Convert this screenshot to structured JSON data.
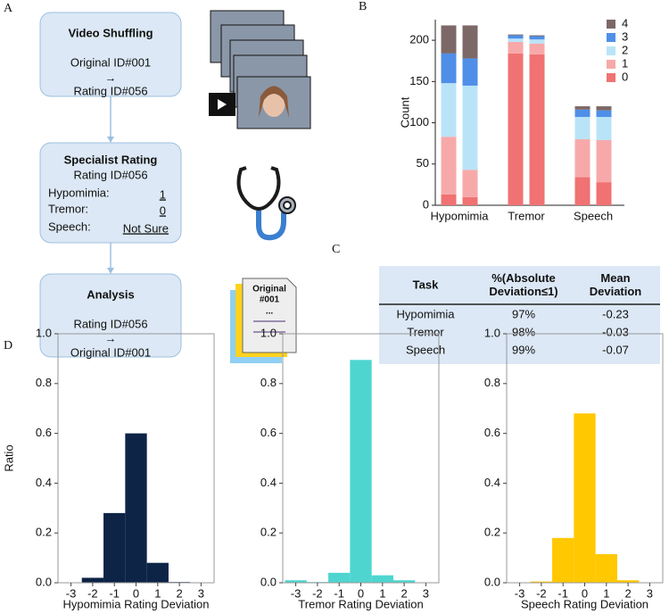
{
  "diagram": {
    "panel_label": "A",
    "boxes": [
      {
        "title": "Video Shuffling",
        "lines": [
          "Original ID#001",
          "→",
          "Rating ID#056"
        ]
      },
      {
        "title": "Specialist Rating",
        "lines": [
          "Rating ID#056"
        ],
        "fields": [
          {
            "label": "Hypomimia:",
            "value": "1"
          },
          {
            "label": "Tremor:",
            "value": "0"
          },
          {
            "label": "Speech:",
            "value": "Not Sure"
          }
        ]
      },
      {
        "title": "Analysis",
        "lines": [
          "Rating ID#056",
          "→",
          "Original ID#001"
        ]
      }
    ],
    "document_icon": [
      "Original",
      "#001",
      "..."
    ]
  },
  "table": {
    "panel_label": "C",
    "header": [
      [
        "Task"
      ],
      [
        "%(Absolute",
        "Deviation≤1)"
      ],
      [
        "Mean",
        "Deviation"
      ]
    ],
    "rows": [
      [
        "Hypomimia",
        "97%",
        "-0.23"
      ],
      [
        "Tremor",
        "98%",
        "-0.03"
      ],
      [
        "Speech",
        "99%",
        "-0.07"
      ]
    ]
  },
  "chart_data": [
    {
      "type": "stacked_bar",
      "panel_label": "B",
      "ylabel": "Count",
      "categories": [
        "Hypomimia",
        null,
        "Tremor",
        null,
        "Speech",
        null
      ],
      "series": [
        {
          "name": "0",
          "color": "#f07272",
          "values": [
            13,
            10,
            184,
            183,
            34,
            28
          ]
        },
        {
          "name": "1",
          "color": "#f7a9a9",
          "values": [
            70,
            33,
            14,
            13,
            46,
            51
          ]
        },
        {
          "name": "2",
          "color": "#b9e4f8",
          "values": [
            65,
            102,
            4,
            5,
            27,
            28
          ]
        },
        {
          "name": "3",
          "color": "#4f8fe8",
          "values": [
            36,
            33,
            4,
            4,
            9,
            8
          ]
        },
        {
          "name": "4",
          "color": "#7d6868",
          "values": [
            34,
            40,
            1,
            1,
            4,
            5
          ]
        }
      ],
      "ylim": [
        0,
        225
      ],
      "yticks": [
        0,
        50,
        100,
        150,
        200
      ],
      "legend": "upper-right"
    },
    {
      "type": "histogram",
      "panel_label": "D",
      "ylabel": "Ratio",
      "xlabel": "Hypomimia Rating Deviation",
      "color": "#0d2447",
      "bins": [
        -3.5,
        -2.5,
        -1.5,
        -0.5,
        0.5,
        1.5,
        2.5,
        3.5
      ],
      "values": [
        0,
        0.02,
        0.28,
        0.6,
        0.08,
        0.003,
        0
      ],
      "xlim": [
        -3.6,
        3.6
      ],
      "xticks": [
        -3,
        -2,
        -1,
        0,
        1,
        2,
        3
      ],
      "ylim": [
        0,
        1
      ],
      "yticks": [
        {
          "value": 0,
          "label": "0.0"
        },
        0.2,
        0.4,
        0.6,
        0.8,
        {
          "value": 1,
          "label": "1.0"
        }
      ]
    },
    {
      "type": "histogram",
      "xlabel": "Tremor Rating Deviation",
      "color": "#4fd5d0",
      "bins": [
        -3.5,
        -2.5,
        -1.5,
        -0.5,
        0.5,
        1.5,
        2.5,
        3.5
      ],
      "values": [
        0.01,
        0.003,
        0.04,
        0.895,
        0.03,
        0.01,
        0
      ],
      "xlim": [
        -3.6,
        3.6
      ],
      "xticks": [
        -3,
        -2,
        -1,
        0,
        1,
        2,
        3
      ],
      "ylim": [
        0,
        1
      ],
      "yticks": [
        {
          "value": 0,
          "label": "0.0"
        },
        0.2,
        0.4,
        0.6,
        0.8,
        {
          "value": 1,
          "label": "1.0"
        }
      ]
    },
    {
      "type": "histogram",
      "xlabel": "Speech Rating Deviation",
      "color": "#ffc800",
      "bins": [
        -3.5,
        -2.5,
        -1.5,
        -0.5,
        0.5,
        1.5,
        2.5,
        3.5
      ],
      "values": [
        0,
        0.005,
        0.18,
        0.68,
        0.115,
        0.01,
        0
      ],
      "xlim": [
        -3.6,
        3.6
      ],
      "xticks": [
        -3,
        -2,
        -1,
        0,
        1,
        2,
        3
      ],
      "ylim": [
        0,
        1
      ],
      "yticks": [
        {
          "value": 0,
          "label": "0.0"
        },
        0.2,
        0.4,
        0.6,
        0.8,
        {
          "value": 1,
          "label": "1.0"
        }
      ]
    }
  ]
}
